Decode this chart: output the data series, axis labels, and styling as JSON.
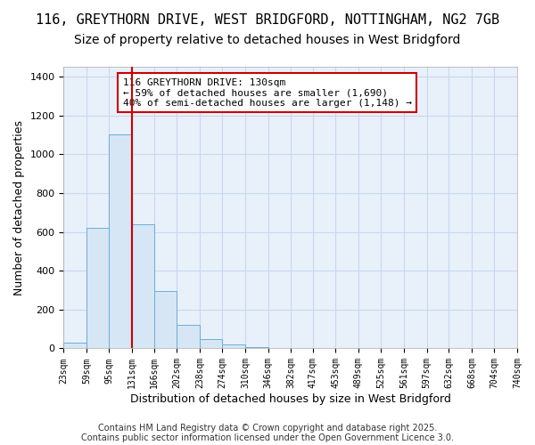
{
  "title1": "116, GREYTHORN DRIVE, WEST BRIDGFORD, NOTTINGHAM, NG2 7GB",
  "title2": "Size of property relative to detached houses in West Bridgford",
  "xlabel": "Distribution of detached houses by size in West Bridgford",
  "ylabel": "Number of detached properties",
  "bar_edges": [
    23,
    59,
    95,
    131,
    166,
    202,
    238,
    274,
    310,
    346,
    382,
    417,
    453,
    489,
    525,
    561,
    597,
    632,
    668,
    704,
    740
  ],
  "bar_heights": [
    30,
    620,
    1100,
    640,
    295,
    120,
    48,
    20,
    5,
    2,
    1,
    0,
    0,
    0,
    0,
    0,
    0,
    0,
    0,
    0
  ],
  "bar_color": "#d6e6f5",
  "bar_edge_color": "#6baed6",
  "grid_color": "#c8d8f0",
  "vline_x": 131,
  "vline_color": "#cc0000",
  "ylim": [
    0,
    1450
  ],
  "xlim_left": 23,
  "xlim_right": 740,
  "annotation_line1": "116 GREYTHORN DRIVE: 130sqm",
  "annotation_line2": "← 59% of detached houses are smaller (1,690)",
  "annotation_line3": "40% of semi-detached houses are larger (1,148) →",
  "annotation_box_color": "white",
  "annotation_box_edge": "#cc0000",
  "footnote1": "Contains HM Land Registry data © Crown copyright and database right 2025.",
  "footnote2": "Contains public sector information licensed under the Open Government Licence 3.0.",
  "bg_color": "#ffffff",
  "plot_bg_color": "#e8f0fa",
  "title1_fontsize": 11,
  "title2_fontsize": 10,
  "ylabel_fontsize": 9,
  "xlabel_fontsize": 9,
  "tick_fontsize": 7,
  "footnote_fontsize": 7,
  "annot_fontsize": 8
}
